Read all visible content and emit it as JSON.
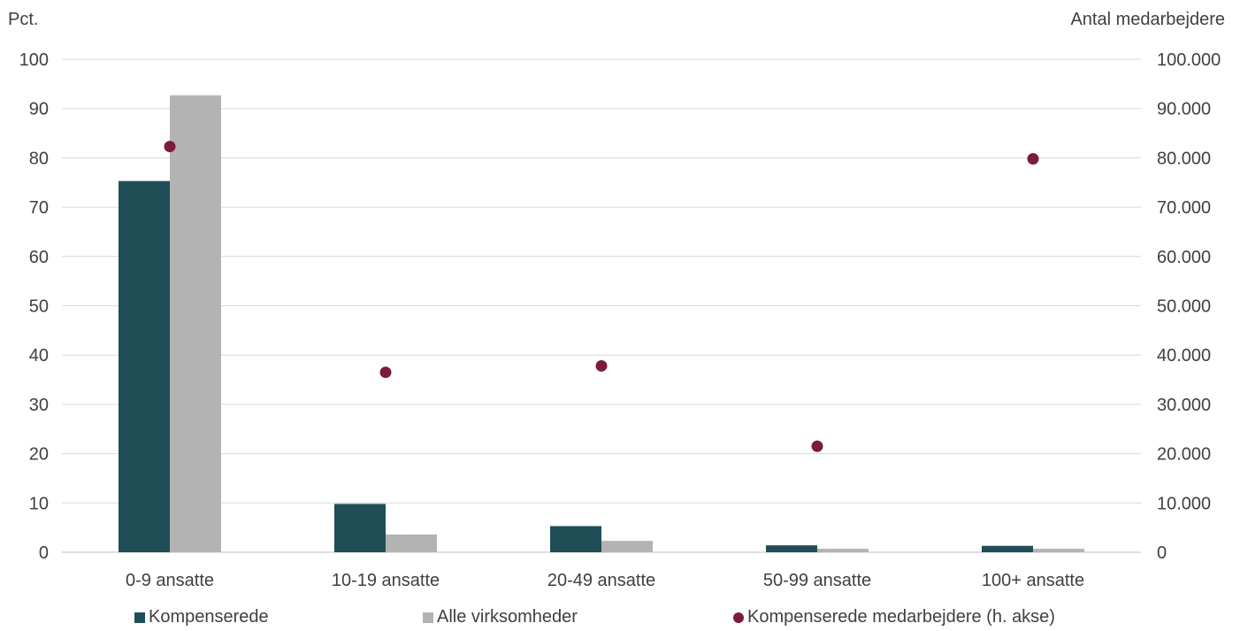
{
  "chart_data": {
    "type": "bar",
    "left_axis_label": "Pct.",
    "right_axis_label": "Antal medarbejdere",
    "categories": [
      "0-9 ansatte",
      "10-19 ansatte",
      "20-49 ansatte",
      "50-99 ansatte",
      "100+ ansatte"
    ],
    "ylim_left": [
      0,
      100
    ],
    "ylim_right": [
      0,
      100000
    ],
    "yticks_left": [
      "0",
      "10",
      "20",
      "30",
      "40",
      "50",
      "60",
      "70",
      "80",
      "90",
      "100"
    ],
    "yticks_right": [
      "0",
      "10.000",
      "20.000",
      "30.000",
      "40.000",
      "50.000",
      "60.000",
      "70.000",
      "80.000",
      "90.000",
      "100.000"
    ],
    "grid": true,
    "legend_position": "bottom",
    "series": [
      {
        "name": "Kompenserede",
        "type": "bar",
        "axis": "left",
        "color": "#1f4e57",
        "values": [
          75.3,
          9.8,
          5.3,
          1.4,
          1.3
        ]
      },
      {
        "name": "Alle virksomheder",
        "type": "bar",
        "axis": "left",
        "color": "#b3b3b3",
        "values": [
          92.7,
          3.6,
          2.3,
          0.7,
          0.7
        ]
      },
      {
        "name": "Kompenserede medarbejdere (h. akse)",
        "type": "scatter",
        "axis": "right",
        "color": "#7b1c38",
        "values": [
          82300,
          36500,
          37800,
          21500,
          79800
        ]
      }
    ]
  }
}
